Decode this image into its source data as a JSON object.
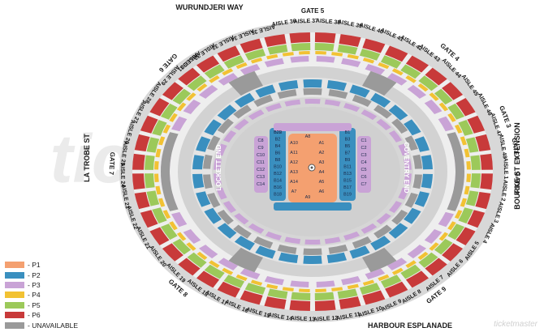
{
  "watermark": "ticketmaster®",
  "streets": {
    "top": "WURUNDJERI WAY",
    "bottom": "HARBOUR ESPLANADE",
    "left": "LA TROBE ST",
    "right": "BOURKE ST EXTENSION"
  },
  "gates": [
    "GATE 1",
    "GATE 2",
    "GATE 3",
    "GATE 4",
    "GATE 5",
    "GATE 6",
    "GATE 7",
    "GATE 8",
    "GATE 9"
  ],
  "aisles": {
    "top": [
      "AISLE 31",
      "AISLE 32",
      "AISLE 33",
      "AISLE 34",
      "AISLE 35",
      "AISLE 36",
      "AISLE 37",
      "AISLE 38",
      "AISLE 39",
      "AISLE 40",
      "AISLE 41",
      "AISLE 42",
      "AISLE 43"
    ],
    "right": [
      "AISLE 44",
      "AISLE 45",
      "AISLE 46",
      "AISLE 47",
      "AISLE 48",
      "AISLE 1",
      "AISLE 2",
      "AISLE 3",
      "AISLE 4",
      "AISLE 5",
      "AISLE 6",
      "AISLE 7"
    ],
    "bottom": [
      "AISLE 8",
      "AISLE 9",
      "AISLE 10",
      "AISLE 11",
      "AISLE 12",
      "AISLE 13",
      "AISLE 14",
      "AISLE 15",
      "AISLE 16",
      "AISLE 17",
      "AISLE 18"
    ],
    "left": [
      "AISLE 19",
      "AISLE 20",
      "AISLE 21",
      "AISLE 22",
      "AISLE 23",
      "AISLE 24",
      "AISLE 25",
      "AISLE 26",
      "AISLE 27",
      "AISLE 28",
      "AISLE 29",
      "AISLE 30"
    ]
  },
  "ends": {
    "left": "LOCKETT END",
    "right": "COVENTRY END"
  },
  "floor_blocks": {
    "center": [
      "A10",
      "A11",
      "A12",
      "A13",
      "A14",
      "A1",
      "A2",
      "A3",
      "A4",
      "A5",
      "A6",
      "A7",
      "A8",
      "A9"
    ],
    "b_rows": [
      "B22",
      "B1",
      "B2",
      "B3",
      "B4",
      "B5",
      "B6",
      "B7",
      "B8",
      "B9",
      "B10",
      "B11",
      "B12",
      "B13",
      "B14",
      "B15",
      "B16",
      "B17",
      "B18",
      "B19",
      "B20"
    ],
    "c_rows": [
      "C1",
      "C2",
      "C3",
      "C4",
      "C5",
      "C6",
      "C7",
      "C8",
      "C9",
      "C10",
      "C11",
      "C12",
      "C13",
      "C14"
    ]
  },
  "legend": [
    {
      "label": "- P1",
      "color": "#f4a070"
    },
    {
      "label": "- P2",
      "color": "#3a8fbf"
    },
    {
      "label": "- P3",
      "color": "#c9a3d6"
    },
    {
      "label": "- P4",
      "color": "#f2c233"
    },
    {
      "label": "- P5",
      "color": "#9cc95a"
    },
    {
      "label": "- P6",
      "color": "#c83a3a"
    },
    {
      "label": "- UNAVAILABLE",
      "color": "#9a9a9a"
    }
  ],
  "colors": {
    "p1": "#f4a070",
    "p2": "#3a8fbf",
    "p3": "#c9a3d6",
    "p4": "#f2c233",
    "p5": "#9cc95a",
    "p6": "#c83a3a",
    "unavailable": "#9a9a9a",
    "concourse": "#d4d4d4",
    "field": "#cfcfcf",
    "stage": "#e8e8e8"
  },
  "logo_text": "ticketmaster"
}
